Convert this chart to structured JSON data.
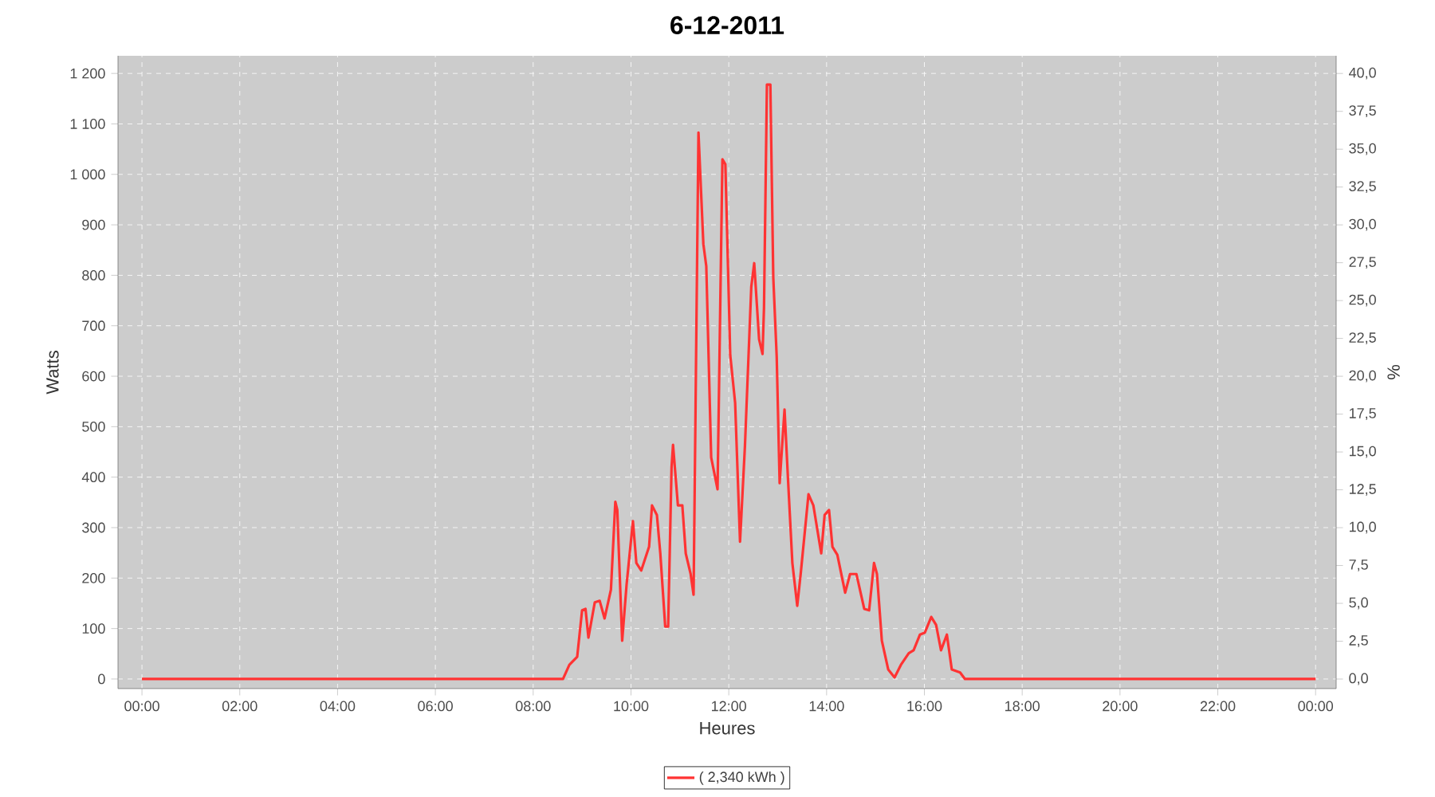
{
  "chart_data": {
    "type": "line",
    "title": "6-12-2011",
    "xlabel": "Heures",
    "ylabel": "Watts",
    "y2label": "%",
    "x": [
      0,
      8.51,
      8.61,
      8.74,
      8.9,
      9.0,
      9.07,
      9.13,
      9.26,
      9.36,
      9.46,
      9.59,
      9.68,
      9.72,
      9.82,
      9.91,
      10.04,
      10.11,
      10.21,
      10.37,
      10.43,
      10.53,
      10.6,
      10.7,
      10.76,
      10.83,
      10.86,
      10.96,
      11.05,
      11.12,
      11.22,
      11.28,
      11.38,
      11.48,
      11.54,
      11.64,
      11.77,
      11.87,
      11.93,
      12.03,
      12.13,
      12.23,
      12.33,
      12.46,
      12.52,
      12.62,
      12.69,
      12.72,
      12.78,
      12.85,
      12.91,
      12.98,
      13.04,
      13.14,
      13.21,
      13.3,
      13.4,
      13.47,
      13.63,
      13.73,
      13.89,
      13.96,
      14.05,
      14.12,
      14.22,
      14.38,
      14.48,
      14.61,
      14.77,
      14.87,
      14.97,
      15.03,
      15.13,
      15.26,
      15.39,
      15.52,
      15.68,
      15.78,
      15.91,
      16.01,
      16.14,
      16.24,
      16.34,
      16.46,
      16.56,
      16.73,
      16.83,
      24.0
    ],
    "series": [
      {
        "name": "( 2,340 kWh )",
        "color": "#ff3333",
        "values": [
          0,
          0,
          0,
          28,
          44,
          136,
          139,
          82,
          152,
          155,
          120,
          177,
          351,
          335,
          76,
          187,
          313,
          230,
          215,
          262,
          344,
          325,
          249,
          104,
          104,
          420,
          464,
          344,
          344,
          249,
          208,
          167,
          1083,
          862,
          818,
          439,
          376,
          1030,
          1020,
          642,
          547,
          272,
          461,
          777,
          824,
          673,
          644,
          735,
          1178,
          1178,
          796,
          638,
          388,
          534,
          398,
          230,
          145,
          208,
          366,
          344,
          249,
          325,
          335,
          262,
          246,
          171,
          208,
          208,
          139,
          136,
          230,
          208,
          76,
          19,
          3,
          28,
          51,
          57,
          88,
          92,
          123,
          107,
          57,
          88,
          19,
          13,
          0,
          0
        ]
      }
    ],
    "xlim": [
      -0.49,
      24.42
    ],
    "ylim": [
      -19,
      1235
    ],
    "y2lim": [
      -0.63,
      41.17
    ],
    "xticks": [
      {
        "value": 0,
        "label": "00:00"
      },
      {
        "value": 2,
        "label": "02:00"
      },
      {
        "value": 4,
        "label": "04:00"
      },
      {
        "value": 6,
        "label": "06:00"
      },
      {
        "value": 8,
        "label": "08:00"
      },
      {
        "value": 10,
        "label": "10:00"
      },
      {
        "value": 12,
        "label": "12:00"
      },
      {
        "value": 14,
        "label": "14:00"
      },
      {
        "value": 16,
        "label": "16:00"
      },
      {
        "value": 18,
        "label": "18:00"
      },
      {
        "value": 20,
        "label": "20:00"
      },
      {
        "value": 22,
        "label": "22:00"
      },
      {
        "value": 24,
        "label": "00:00"
      }
    ],
    "yticks": [
      0,
      100,
      200,
      300,
      400,
      500,
      600,
      700,
      800,
      900,
      {
        "value": 1000,
        "label": "1 000"
      },
      {
        "value": 1100,
        "label": "1 100"
      },
      {
        "value": 1200,
        "label": "1 200"
      }
    ],
    "y2ticks": [
      {
        "value": 0,
        "label": "0,0"
      },
      {
        "value": 2.5,
        "label": "2,5"
      },
      {
        "value": 5,
        "label": "5,0"
      },
      {
        "value": 7.5,
        "label": "7,5"
      },
      {
        "value": 10,
        "label": "10,0"
      },
      {
        "value": 12.5,
        "label": "12,5"
      },
      {
        "value": 15,
        "label": "15,0"
      },
      {
        "value": 17.5,
        "label": "17,5"
      },
      {
        "value": 20,
        "label": "20,0"
      },
      {
        "value": 22.5,
        "label": "22,5"
      },
      {
        "value": 25,
        "label": "25,0"
      },
      {
        "value": 27.5,
        "label": "27,5"
      },
      {
        "value": 30,
        "label": "30,0"
      },
      {
        "value": 32.5,
        "label": "32,5"
      },
      {
        "value": 35,
        "label": "35,0"
      },
      {
        "value": 37.5,
        "label": "37,5"
      },
      {
        "value": 40,
        "label": "40,0"
      }
    ],
    "grid": true,
    "legend": "bottom",
    "marker": "none",
    "line_style": "solid"
  }
}
